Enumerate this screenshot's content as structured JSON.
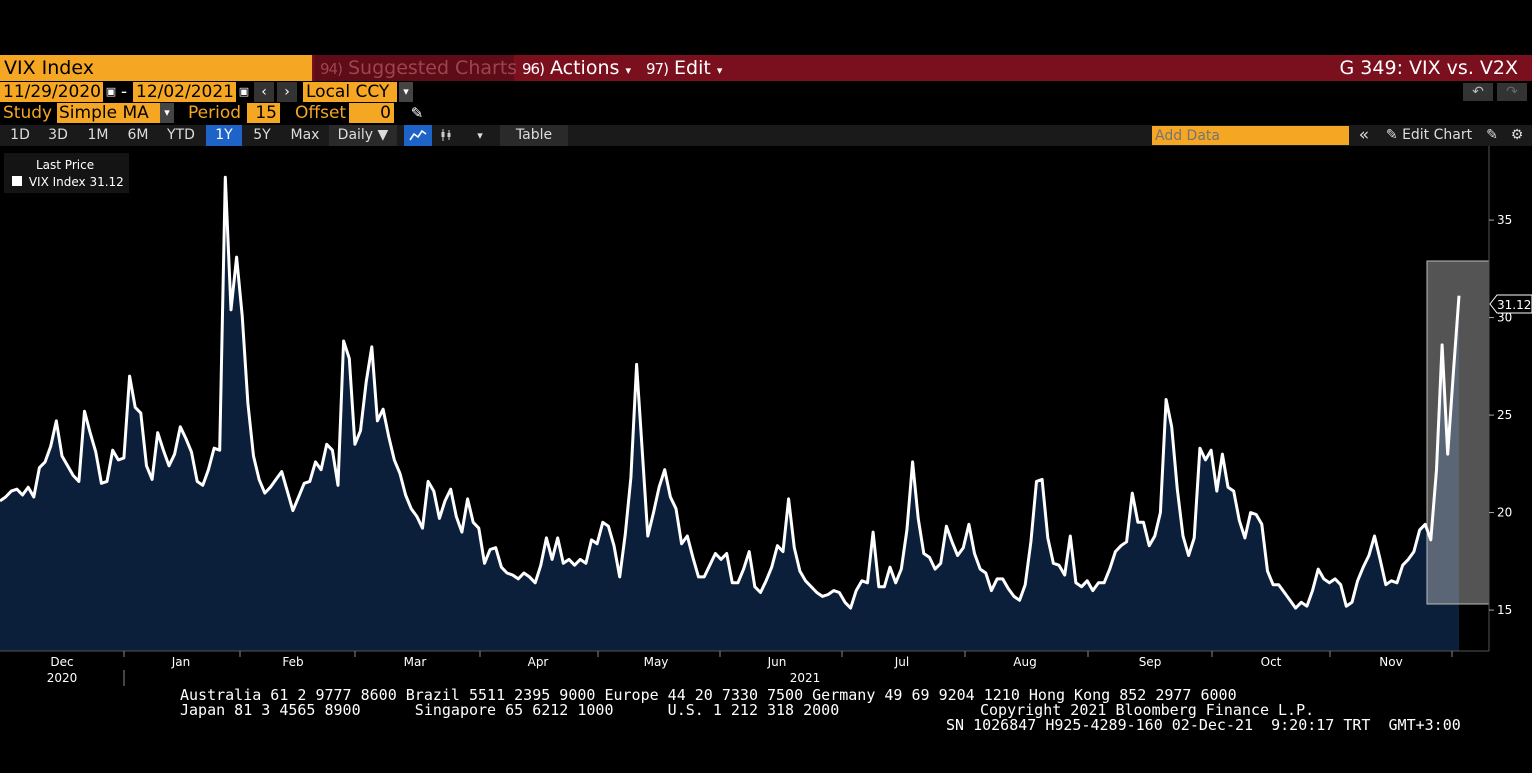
{
  "header": {
    "ticker": "VIX Index",
    "suggested_num": "94)",
    "suggested": "Suggested Charts",
    "actions_num": "96)",
    "actions": "Actions",
    "edit_num": "97)",
    "edit": "Edit",
    "title": "G 349: VIX vs. V2X"
  },
  "date_row": {
    "start": "11/29/2020",
    "end": "12/02/2021",
    "dash": "-",
    "currency": "Local CCY"
  },
  "study_row": {
    "study_label": "Study",
    "study_value": "Simple MA",
    "period_label": "Period",
    "period_value": "15",
    "offset_label": "Offset",
    "offset_value": "0"
  },
  "toolbar": {
    "ranges": [
      "1D",
      "3D",
      "1M",
      "6M",
      "YTD",
      "1Y",
      "5Y",
      "Max"
    ],
    "active_range": "1Y",
    "frequency": "Daily ▼",
    "table": "Table",
    "add_data_placeholder": "Add Data",
    "edit_chart": "Edit Chart"
  },
  "legend": {
    "title": "Last Price",
    "entry": "VIX Index 31.12"
  },
  "colors": {
    "accent": "#f5a623",
    "header_bg": "#7a0f1e",
    "area_fill": "#0c1f3a",
    "line": "#ffffff",
    "active_btn": "#1e64c8"
  },
  "chart_data": {
    "type": "area",
    "series": [
      {
        "name": "VIX Index"
      }
    ],
    "y_ticks": [
      15,
      20,
      25,
      30,
      35
    ],
    "ylim": [
      12.9,
      38.8
    ],
    "last_value_label": "31.12",
    "months": [
      "Dec",
      "Jan",
      "Feb",
      "Mar",
      "Apr",
      "May",
      "Jun",
      "Jul",
      "Aug",
      "Sep",
      "Oct",
      "Nov"
    ],
    "years": [
      "2020",
      "2021"
    ],
    "values": [
      20.6,
      20.8,
      21.1,
      21.2,
      20.9,
      21.3,
      20.8,
      22.3,
      22.6,
      23.4,
      24.7,
      22.9,
      22.4,
      21.9,
      21.6,
      25.2,
      24.1,
      23.1,
      21.5,
      21.6,
      23.2,
      22.7,
      22.8,
      27.0,
      25.4,
      25.1,
      22.4,
      21.7,
      24.1,
      23.2,
      22.4,
      23.0,
      24.4,
      23.8,
      23.1,
      21.6,
      21.4,
      22.2,
      23.3,
      23.2,
      37.2,
      30.4,
      33.1,
      30.1,
      25.6,
      22.9,
      21.7,
      21.0,
      21.3,
      21.7,
      22.1,
      21.1,
      20.1,
      20.8,
      21.5,
      21.6,
      22.6,
      22.2,
      23.5,
      23.2,
      21.4,
      28.8,
      27.9,
      23.5,
      24.2,
      26.7,
      28.5,
      24.7,
      25.3,
      23.9,
      22.7,
      22.0,
      20.9,
      20.2,
      19.8,
      19.2,
      21.6,
      21.1,
      19.7,
      20.6,
      21.2,
      19.8,
      19.0,
      20.7,
      19.5,
      19.2,
      17.4,
      18.1,
      18.2,
      17.2,
      16.9,
      16.8,
      16.6,
      16.9,
      16.7,
      16.4,
      17.3,
      18.7,
      17.6,
      18.7,
      17.4,
      17.6,
      17.3,
      17.6,
      17.4,
      18.6,
      18.4,
      19.5,
      19.3,
      18.3,
      16.7,
      18.9,
      21.8,
      27.6,
      23.2,
      18.8,
      20.0,
      21.3,
      22.2,
      20.8,
      20.2,
      18.4,
      18.8,
      17.7,
      16.7,
      16.7,
      17.3,
      17.9,
      17.6,
      17.9,
      16.4,
      16.4,
      17.1,
      18.0,
      16.2,
      15.9,
      16.5,
      17.2,
      18.3,
      18.0,
      20.7,
      18.2,
      17.0,
      16.5,
      16.2,
      15.9,
      15.7,
      15.8,
      16.0,
      15.9,
      15.4,
      15.1,
      16.0,
      16.5,
      16.4,
      19.0,
      16.2,
      16.2,
      17.2,
      16.4,
      17.1,
      19.1,
      22.6,
      19.7,
      17.9,
      17.7,
      17.1,
      17.4,
      19.3,
      18.5,
      17.8,
      18.2,
      19.4,
      17.9,
      17.1,
      16.9,
      16.0,
      16.6,
      16.6,
      16.1,
      15.7,
      15.5,
      16.3,
      18.5,
      21.6,
      21.7,
      18.7,
      17.4,
      17.3,
      16.8,
      18.8,
      16.4,
      16.2,
      16.5,
      16.0,
      16.4,
      16.4,
      17.1,
      18.0,
      18.3,
      18.5,
      21.0,
      19.5,
      19.5,
      18.3,
      18.8,
      20.0,
      25.8,
      24.4,
      21.2,
      18.8,
      17.8,
      18.7,
      23.3,
      22.7,
      23.2,
      21.1,
      23.0,
      21.3,
      21.1,
      19.6,
      18.7,
      20.0,
      19.9,
      19.4,
      17.0,
      16.3,
      16.3,
      15.9,
      15.5,
      15.1,
      15.4,
      15.2,
      16.0,
      17.1,
      16.6,
      16.4,
      16.6,
      16.3,
      15.2,
      15.4,
      16.5,
      17.2,
      17.8,
      18.8,
      17.6,
      16.3,
      16.5,
      16.4,
      17.3,
      17.6,
      18.0,
      19.1,
      19.4,
      18.6,
      22.2,
      28.6,
      23.0,
      27.2,
      31.12
    ]
  },
  "footer": {
    "line1": "Australia 61 2 9777 8600 Brazil 5511 2395 9000 Europe 44 20 7330 7500 Germany 49 69 9204 1210 Hong Kong 852 2977 6000",
    "line2_left": "Japan 81 3 4565 8900      Singapore 65 6212 1000      U.S. 1 212 318 2000",
    "line2_right": "Copyright 2021 Bloomberg Finance L.P.",
    "line3": "SN 1026847 H925-4289-160 02-Dec-21  9:20:17 TRT  GMT+3:00"
  }
}
